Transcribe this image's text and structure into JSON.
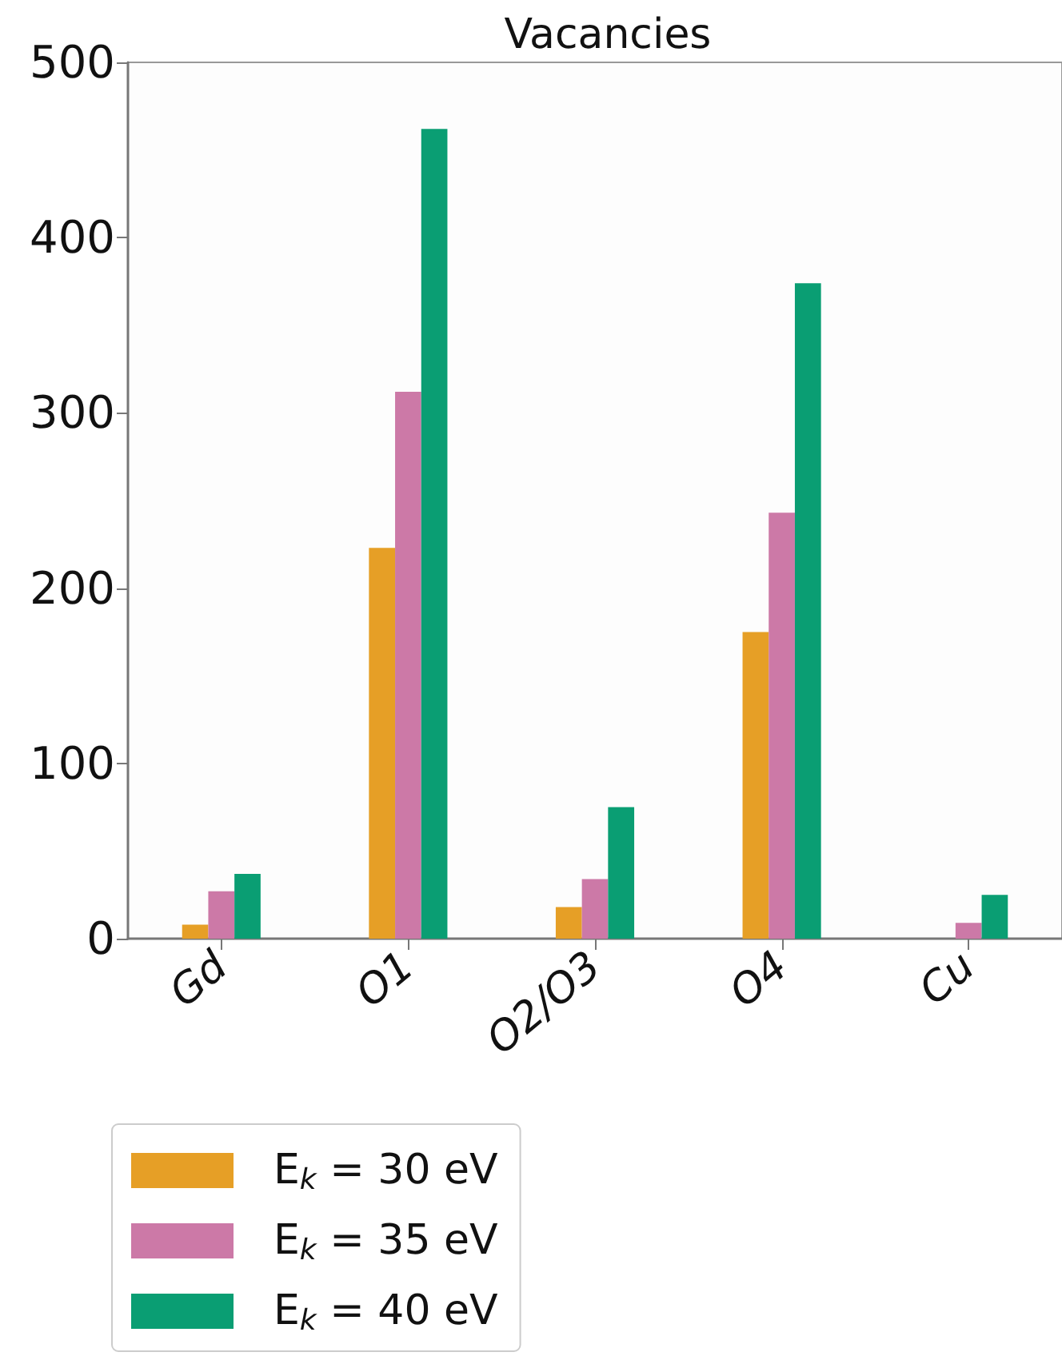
{
  "chart_data": {
    "type": "bar",
    "title": "Vacancies",
    "categories": [
      "Gd",
      "O1",
      "O2/O3",
      "O4",
      "Cu"
    ],
    "series": [
      {
        "name": "E$_{k}$ = 30 eV",
        "color": "#e69f26",
        "values": [
          8,
          223,
          18,
          175,
          0
        ]
      },
      {
        "name": "E$_{k}$ = 35 eV",
        "color": "#cc79a7",
        "values": [
          27,
          312,
          34,
          243,
          9
        ]
      },
      {
        "name": "E$_{k}$ = 40 eV",
        "color": "#0a9e73",
        "values": [
          37,
          462,
          75,
          374,
          25
        ]
      }
    ],
    "ylim": [
      0,
      500
    ],
    "yticks": [
      0,
      100,
      200,
      300,
      400,
      500
    ],
    "grid": false,
    "legend": "bottom left"
  }
}
